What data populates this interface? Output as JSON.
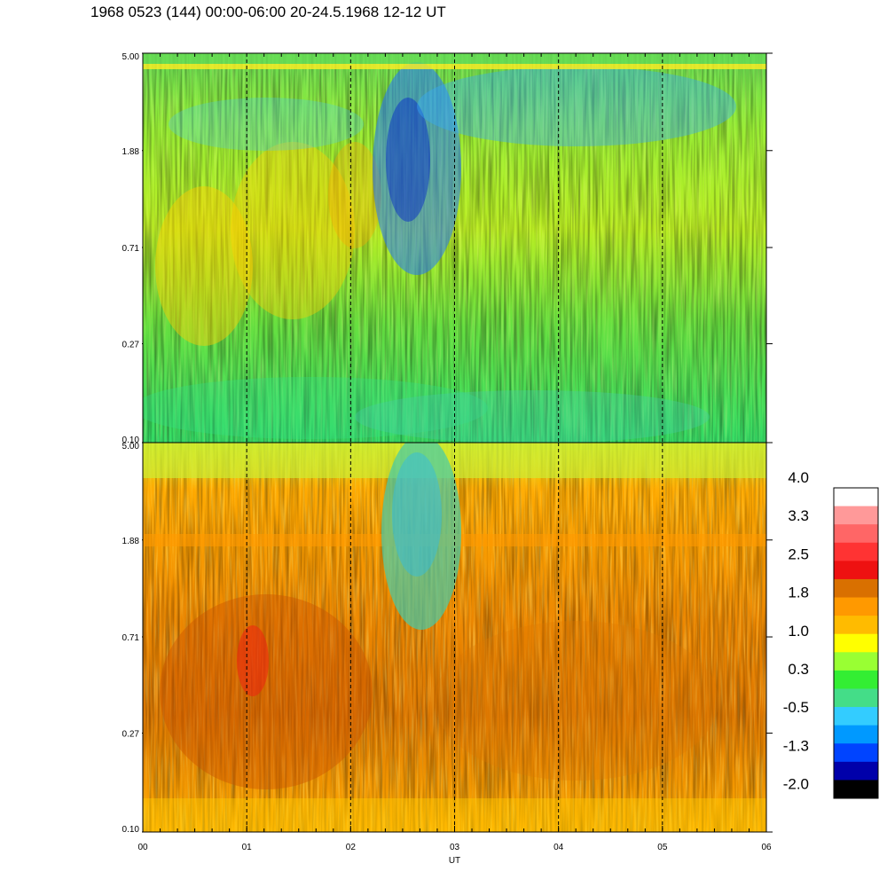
{
  "title": "1968 0523 (144) 00:00-06:00 20-24.5.1968  12-12 UT",
  "chart_data": [
    {
      "type": "heatmap",
      "name": "upper-panel",
      "ylim": [
        0.1,
        5.0
      ],
      "y_scale": "log",
      "y_ticks": [
        "5.00",
        "1.88",
        "0.71",
        "0.27",
        "0.10"
      ],
      "xlim": [
        0,
        6
      ],
      "x_ticks": [
        "00",
        "01",
        "02",
        "03",
        "04",
        "05",
        "06"
      ],
      "dominant_colors": [
        "green",
        "yellow-green",
        "cyan",
        "blue"
      ],
      "feature": "blue enhancement near 02:20-03:00 above 0.71"
    },
    {
      "type": "heatmap",
      "name": "lower-panel",
      "ylim": [
        0.1,
        5.0
      ],
      "y_scale": "log",
      "y_ticks": [
        "5.00",
        "1.88",
        "0.71",
        "0.27",
        "0.10"
      ],
      "xlim": [
        0,
        6
      ],
      "x_ticks": [
        "00",
        "01",
        "02",
        "03",
        "04",
        "05",
        "06"
      ],
      "xlabel": "UT",
      "dominant_colors": [
        "orange",
        "yellow",
        "dark-orange",
        "red"
      ],
      "feature": "green/cyan depletion near 02:20-03:00 above 0.71"
    }
  ],
  "colorbar": {
    "labels": [
      "4.0",
      "3.3",
      "2.5",
      "1.8",
      "1.0",
      "0.3",
      "-0.5",
      "-1.3",
      "-2.0"
    ],
    "colors": [
      "#ffffff",
      "#ff9999",
      "#ff6666",
      "#ff3333",
      "#ee1111",
      "#d97000",
      "#ff9900",
      "#ffbb00",
      "#ffff00",
      "#99ff33",
      "#33ee33",
      "#44dd88",
      "#33ccff",
      "#0099ff",
      "#0044ff",
      "#0000aa",
      "#000000"
    ]
  }
}
